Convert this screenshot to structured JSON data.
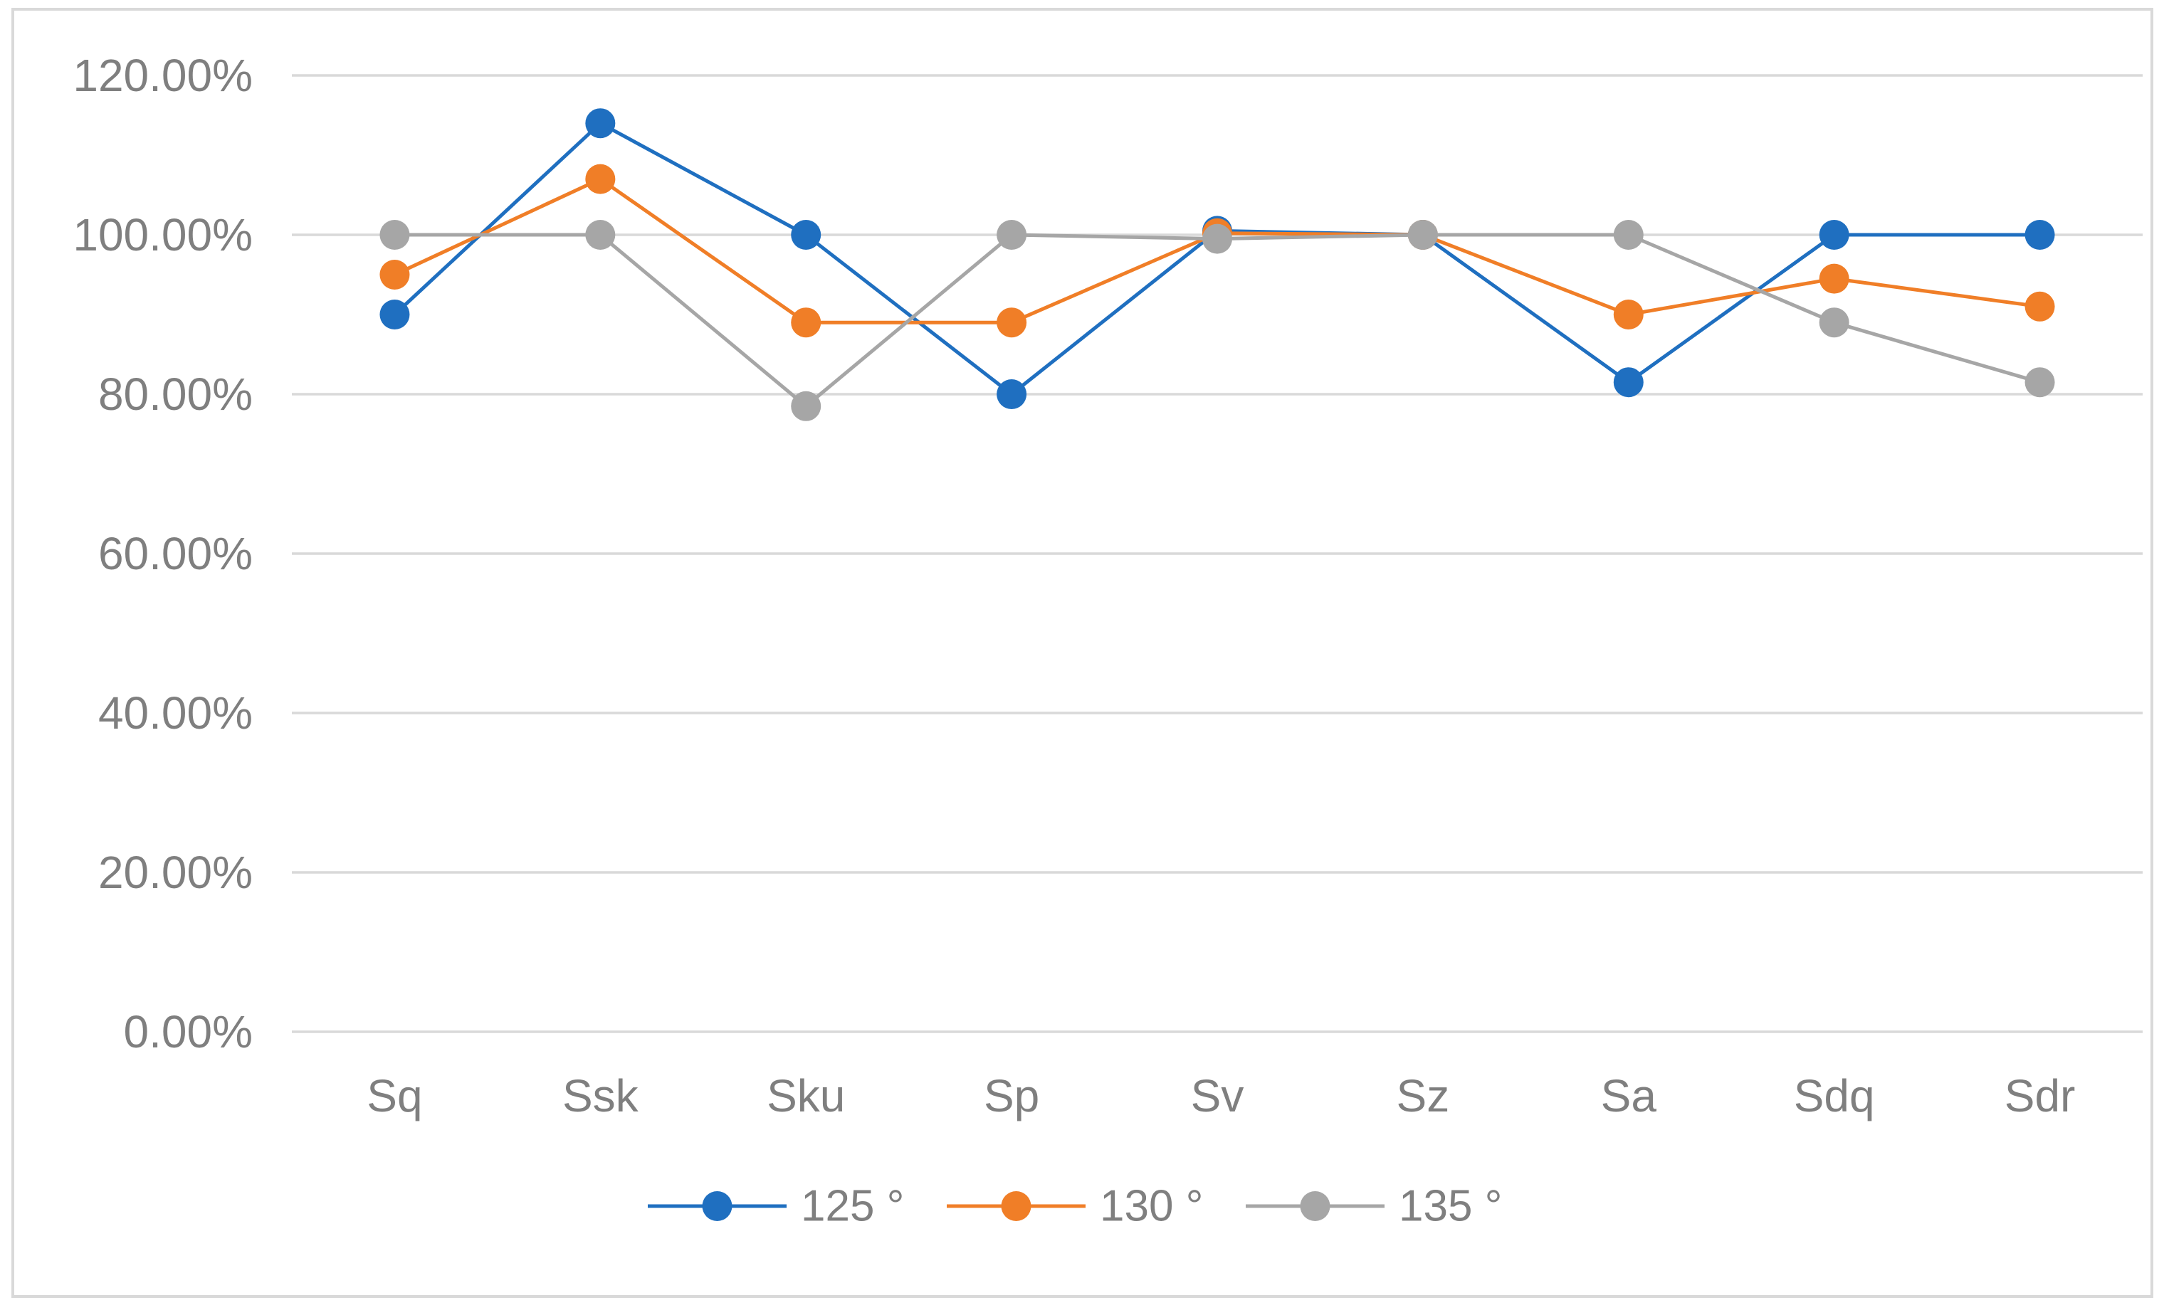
{
  "chart_data": {
    "type": "line",
    "title": "",
    "xlabel": "",
    "ylabel": "",
    "unit": "%",
    "categories": [
      "Sq",
      "Ssk",
      "Sku",
      "Sp",
      "Sv",
      "Sz",
      "Sa",
      "Sdq",
      "Sdr"
    ],
    "series": [
      {
        "name": "125 °",
        "color": "#1F6FC0",
        "marker": "circle",
        "values": [
          90,
          114,
          100,
          80,
          100.5,
          100,
          81.5,
          100,
          100
        ]
      },
      {
        "name": "130 °",
        "color": "#F07E27",
        "marker": "circle",
        "values": [
          95,
          107,
          89,
          89,
          100.2,
          100,
          90,
          94.5,
          91
        ]
      },
      {
        "name": "135 °",
        "color": "#A6A6A6",
        "marker": "circle",
        "values": [
          100,
          100,
          78.5,
          100,
          99.5,
          100,
          100,
          89,
          81.5
        ]
      }
    ],
    "ylim": [
      0,
      120
    ],
    "ytick_values": [
      0,
      20,
      40,
      60,
      80,
      100,
      120
    ],
    "ytick_labels": [
      "0.00%",
      "20.00%",
      "40.00%",
      "60.00%",
      "80.00%",
      "100.00%",
      "120.00%"
    ],
    "grid": true,
    "legend_position": "bottom",
    "legend_labels": [
      "125 °",
      "130 °",
      "135 °"
    ],
    "colors": {
      "gridline": "#D9D9D9",
      "axis_text": "#7F7F7F",
      "frame_border": "#D9D9D9",
      "background": "#FFFFFF"
    }
  }
}
